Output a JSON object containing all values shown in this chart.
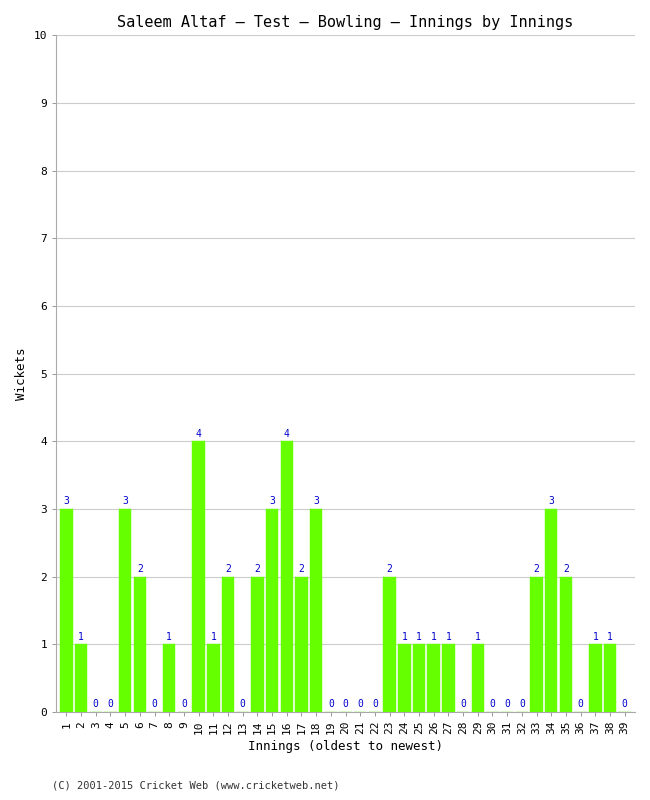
{
  "title": "Saleem Altaf – Test – Bowling – Innings by Innings",
  "xlabel": "Innings (oldest to newest)",
  "ylabel": "Wickets",
  "innings": [
    1,
    2,
    3,
    4,
    5,
    6,
    7,
    8,
    9,
    10,
    11,
    12,
    13,
    14,
    15,
    16,
    17,
    18,
    19,
    20,
    21,
    22,
    23,
    24,
    25,
    26,
    27,
    28,
    29,
    30,
    31,
    32,
    33,
    34,
    35,
    36,
    37,
    38,
    39
  ],
  "wickets": [
    3,
    1,
    0,
    0,
    3,
    2,
    0,
    1,
    0,
    4,
    1,
    2,
    0,
    2,
    3,
    4,
    2,
    3,
    0,
    0,
    0,
    0,
    2,
    1,
    1,
    1,
    1,
    0,
    1,
    0,
    0,
    0,
    2,
    3,
    2,
    0,
    1,
    1,
    0
  ],
  "bar_color": "#66ff00",
  "bar_edge_color": "#66ff00",
  "label_color": "#0000cc",
  "ylim": [
    0,
    10
  ],
  "yticks": [
    0,
    1,
    2,
    3,
    4,
    5,
    6,
    7,
    8,
    9,
    10
  ],
  "grid_color": "#cccccc",
  "bg_color": "#ffffff",
  "title_fontsize": 11,
  "label_fontsize": 9,
  "tick_fontsize": 8,
  "annotation_fontsize": 7,
  "footer": "(C) 2001-2015 Cricket Web (www.cricketweb.net)"
}
